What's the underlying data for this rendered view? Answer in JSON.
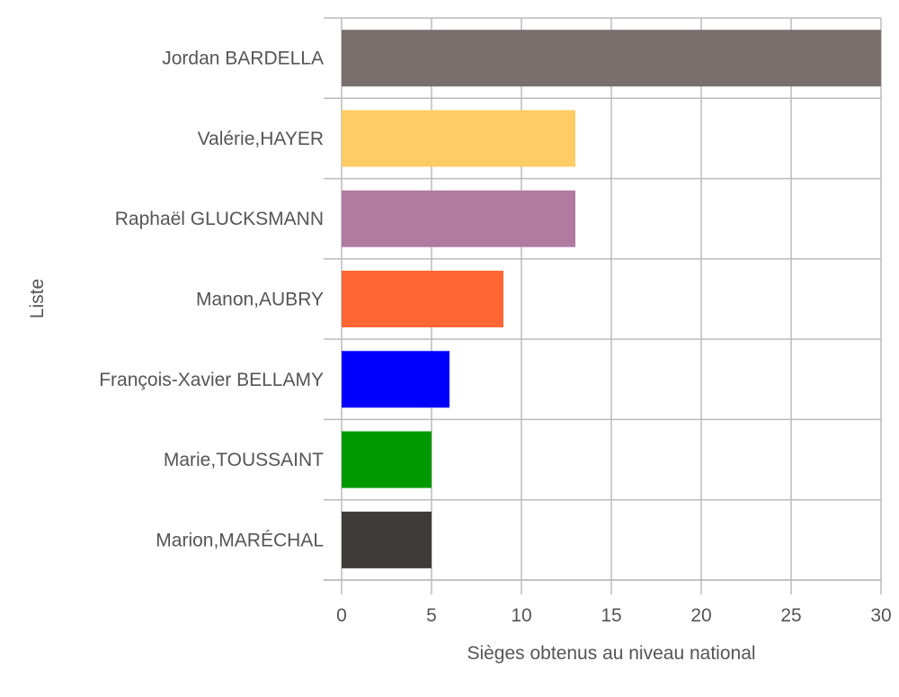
{
  "chart_data": {
    "type": "bar",
    "orientation": "horizontal",
    "categories": [
      "Jordan BARDELLA",
      "Valérie,HAYER",
      "Raphaël GLUCKSMANN",
      "Manon,AUBRY",
      "François-Xavier BELLAMY",
      "Marie,TOUSSAINT",
      "Marion,MARÉCHAL"
    ],
    "values": [
      30,
      13,
      13,
      9,
      6,
      5,
      5
    ],
    "colors": [
      "#7a6f6c",
      "#ffcc66",
      "#b07aa1",
      "#ff6633",
      "#0000ff",
      "#009900",
      "#3f3b3a"
    ],
    "title": "",
    "xlabel": "Sièges obtenus au niveau national",
    "ylabel": "Liste",
    "xlim": [
      0,
      30
    ],
    "xticks": [
      0,
      5,
      10,
      15,
      20,
      25,
      30
    ],
    "grid": true,
    "gridColor": "#bbbbbb",
    "textColor": "#555555"
  }
}
